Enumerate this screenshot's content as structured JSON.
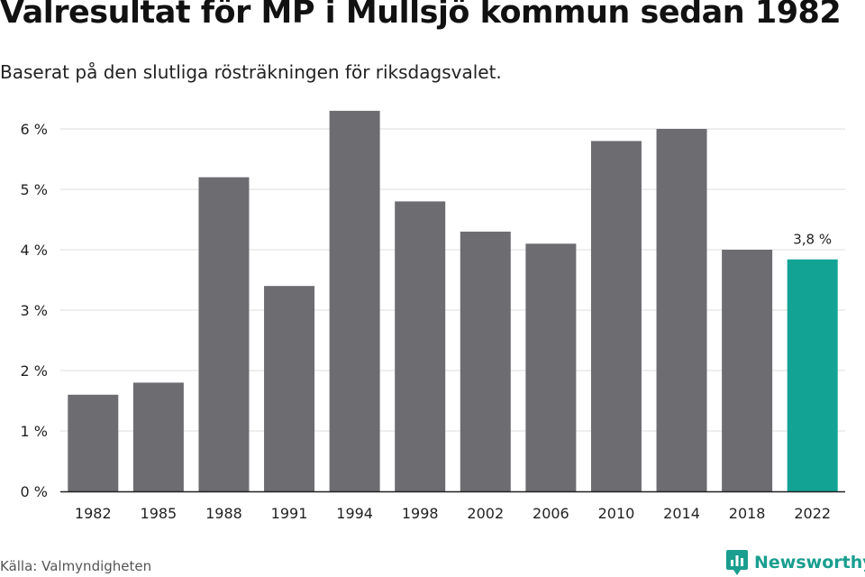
{
  "title": "Valresultat för MP i Mullsjö kommun sedan 1982",
  "subtitle": "Baserat på den slutliga rösträkningen för riksdagsvalet.",
  "source": "Källa: Valmyndigheten",
  "brand": {
    "name": "Newsworthy",
    "icon": "newsworthy-logo-icon"
  },
  "colors": {
    "bar": "#6d6c71",
    "highlight": "#12a394",
    "grid": "#dddddd",
    "axis": "#222222"
  },
  "chart_data": {
    "type": "bar",
    "categories": [
      "1982",
      "1985",
      "1988",
      "1991",
      "1994",
      "1998",
      "2002",
      "2006",
      "2010",
      "2014",
      "2018",
      "2022"
    ],
    "values": [
      1.6,
      1.8,
      5.2,
      3.4,
      6.3,
      4.8,
      4.3,
      4.1,
      5.8,
      6.0,
      4.0,
      3.84
    ],
    "highlight_index": 11,
    "data_labels": [
      {
        "index": 11,
        "text": "3,8 %"
      }
    ],
    "yticks": [
      "0 %",
      "1 %",
      "2 %",
      "3 %",
      "4 %",
      "5 %",
      "6 %"
    ],
    "ytick_values": [
      0,
      1,
      2,
      3,
      4,
      5,
      6
    ],
    "ylim": [
      0,
      6.3
    ],
    "grid": true,
    "legend": "none"
  }
}
